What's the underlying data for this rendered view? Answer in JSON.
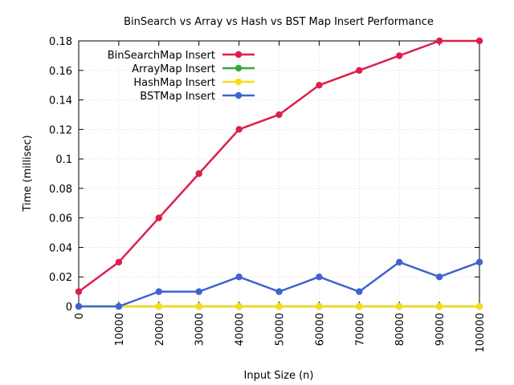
{
  "chart_data": {
    "type": "line",
    "title": "BinSearch vs Array vs Hash vs BST Map Insert Performance",
    "xlabel": "Input Size (n)",
    "ylabel": "Time (millisec)",
    "xlim": [
      0,
      100000
    ],
    "ylim": [
      0,
      0.18
    ],
    "grid": true,
    "legend_position": "top-left",
    "x": [
      0,
      10000,
      20000,
      30000,
      40000,
      50000,
      60000,
      70000,
      80000,
      90000,
      100000
    ],
    "x_tick_labels": [
      "0",
      "10000",
      "20000",
      "30000",
      "40000",
      "50000",
      "60000",
      "70000",
      "80000",
      "90000",
      "100000"
    ],
    "y_ticks": [
      0,
      0.02,
      0.04,
      0.06,
      0.08,
      0.1,
      0.12,
      0.14,
      0.16,
      0.18
    ],
    "y_tick_labels": [
      "0",
      "0.02",
      "0.04",
      "0.06",
      "0.08",
      "0.1",
      "0.12",
      "0.14",
      "0.16",
      "0.18"
    ],
    "series": [
      {
        "name": "BinSearchMap Insert",
        "color": "#dc1f4b",
        "values": [
          0.01,
          0.03,
          0.06,
          0.09,
          0.12,
          0.13,
          0.15,
          0.16,
          0.17,
          0.18,
          0.18
        ]
      },
      {
        "name": "ArrayMap Insert",
        "color": "#3aa63a",
        "values": [
          0,
          0,
          0,
          0,
          0,
          0,
          0,
          0,
          0,
          0,
          0
        ]
      },
      {
        "name": "HashMap Insert",
        "color": "#f5dd17",
        "values": [
          0,
          0,
          0,
          0,
          0,
          0,
          0,
          0,
          0,
          0,
          0
        ]
      },
      {
        "name": "BSTMap Insert",
        "color": "#3f64d0",
        "values": [
          0,
          0,
          0.01,
          0.01,
          0.02,
          0.01,
          0.02,
          0.01,
          0.03,
          0.02,
          0.03
        ]
      }
    ]
  }
}
